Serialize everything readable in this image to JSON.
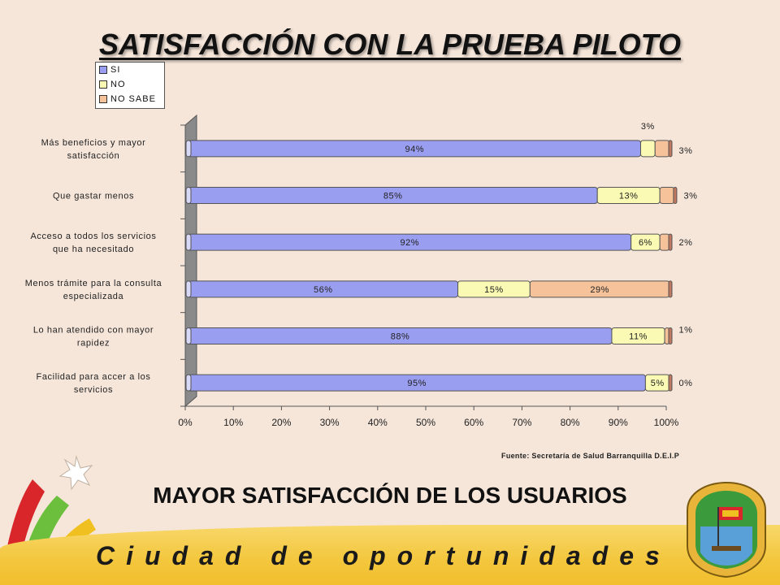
{
  "slide": {
    "title": "SATISFACCIÓN CON LA PRUEBA PILOTO",
    "source": "Fuente: Secretaría de Salud Barranquilla D.E.I.P",
    "subtitle": "MAYOR SATISFACCIÓN DE LOS USUARIOS",
    "slogan": "Ciudad de oportunidades",
    "seal_icon": "city-seal-icon",
    "star_icon": "star-burst-icon"
  },
  "colors": {
    "si": "#9a9ef0",
    "no": "#fafab4",
    "no_sabe": "#f6c29a",
    "background": "#f6e6da",
    "footer": "#f3c63c"
  },
  "chart_data": {
    "type": "bar",
    "orientation": "horizontal",
    "stacked": true,
    "percent_scale": true,
    "categories": [
      "Más beneficios y mayor satisfacción",
      "Que gastar menos",
      "Acceso a todos los servicios que ha necesitado",
      "Menos trámite para la consulta especializada",
      "Lo han atendido con mayor rapidez",
      "Facilidad para accer a los servicios"
    ],
    "series": [
      {
        "name": "SI",
        "values": [
          94,
          85,
          92,
          56,
          88,
          95
        ],
        "labels": [
          "94%",
          "85%",
          "92%",
          "56%",
          "88%",
          "95%"
        ]
      },
      {
        "name": "NO",
        "values": [
          3,
          13,
          6,
          15,
          11,
          5
        ],
        "labels": [
          "3%",
          "13%",
          "6%",
          "15%",
          "11%",
          "5%"
        ]
      },
      {
        "name": "NO SABE",
        "values": [
          3,
          3,
          2,
          29,
          1,
          0
        ],
        "labels": [
          "3%",
          "3%",
          "2%",
          "29%",
          "1%",
          "0%"
        ]
      }
    ],
    "xlim": [
      0,
      100
    ],
    "xticks": [
      "0%",
      "10%",
      "20%",
      "30%",
      "40%",
      "50%",
      "60%",
      "70%",
      "80%",
      "90%",
      "100%"
    ],
    "legend_position": "top-left",
    "grid": false
  }
}
